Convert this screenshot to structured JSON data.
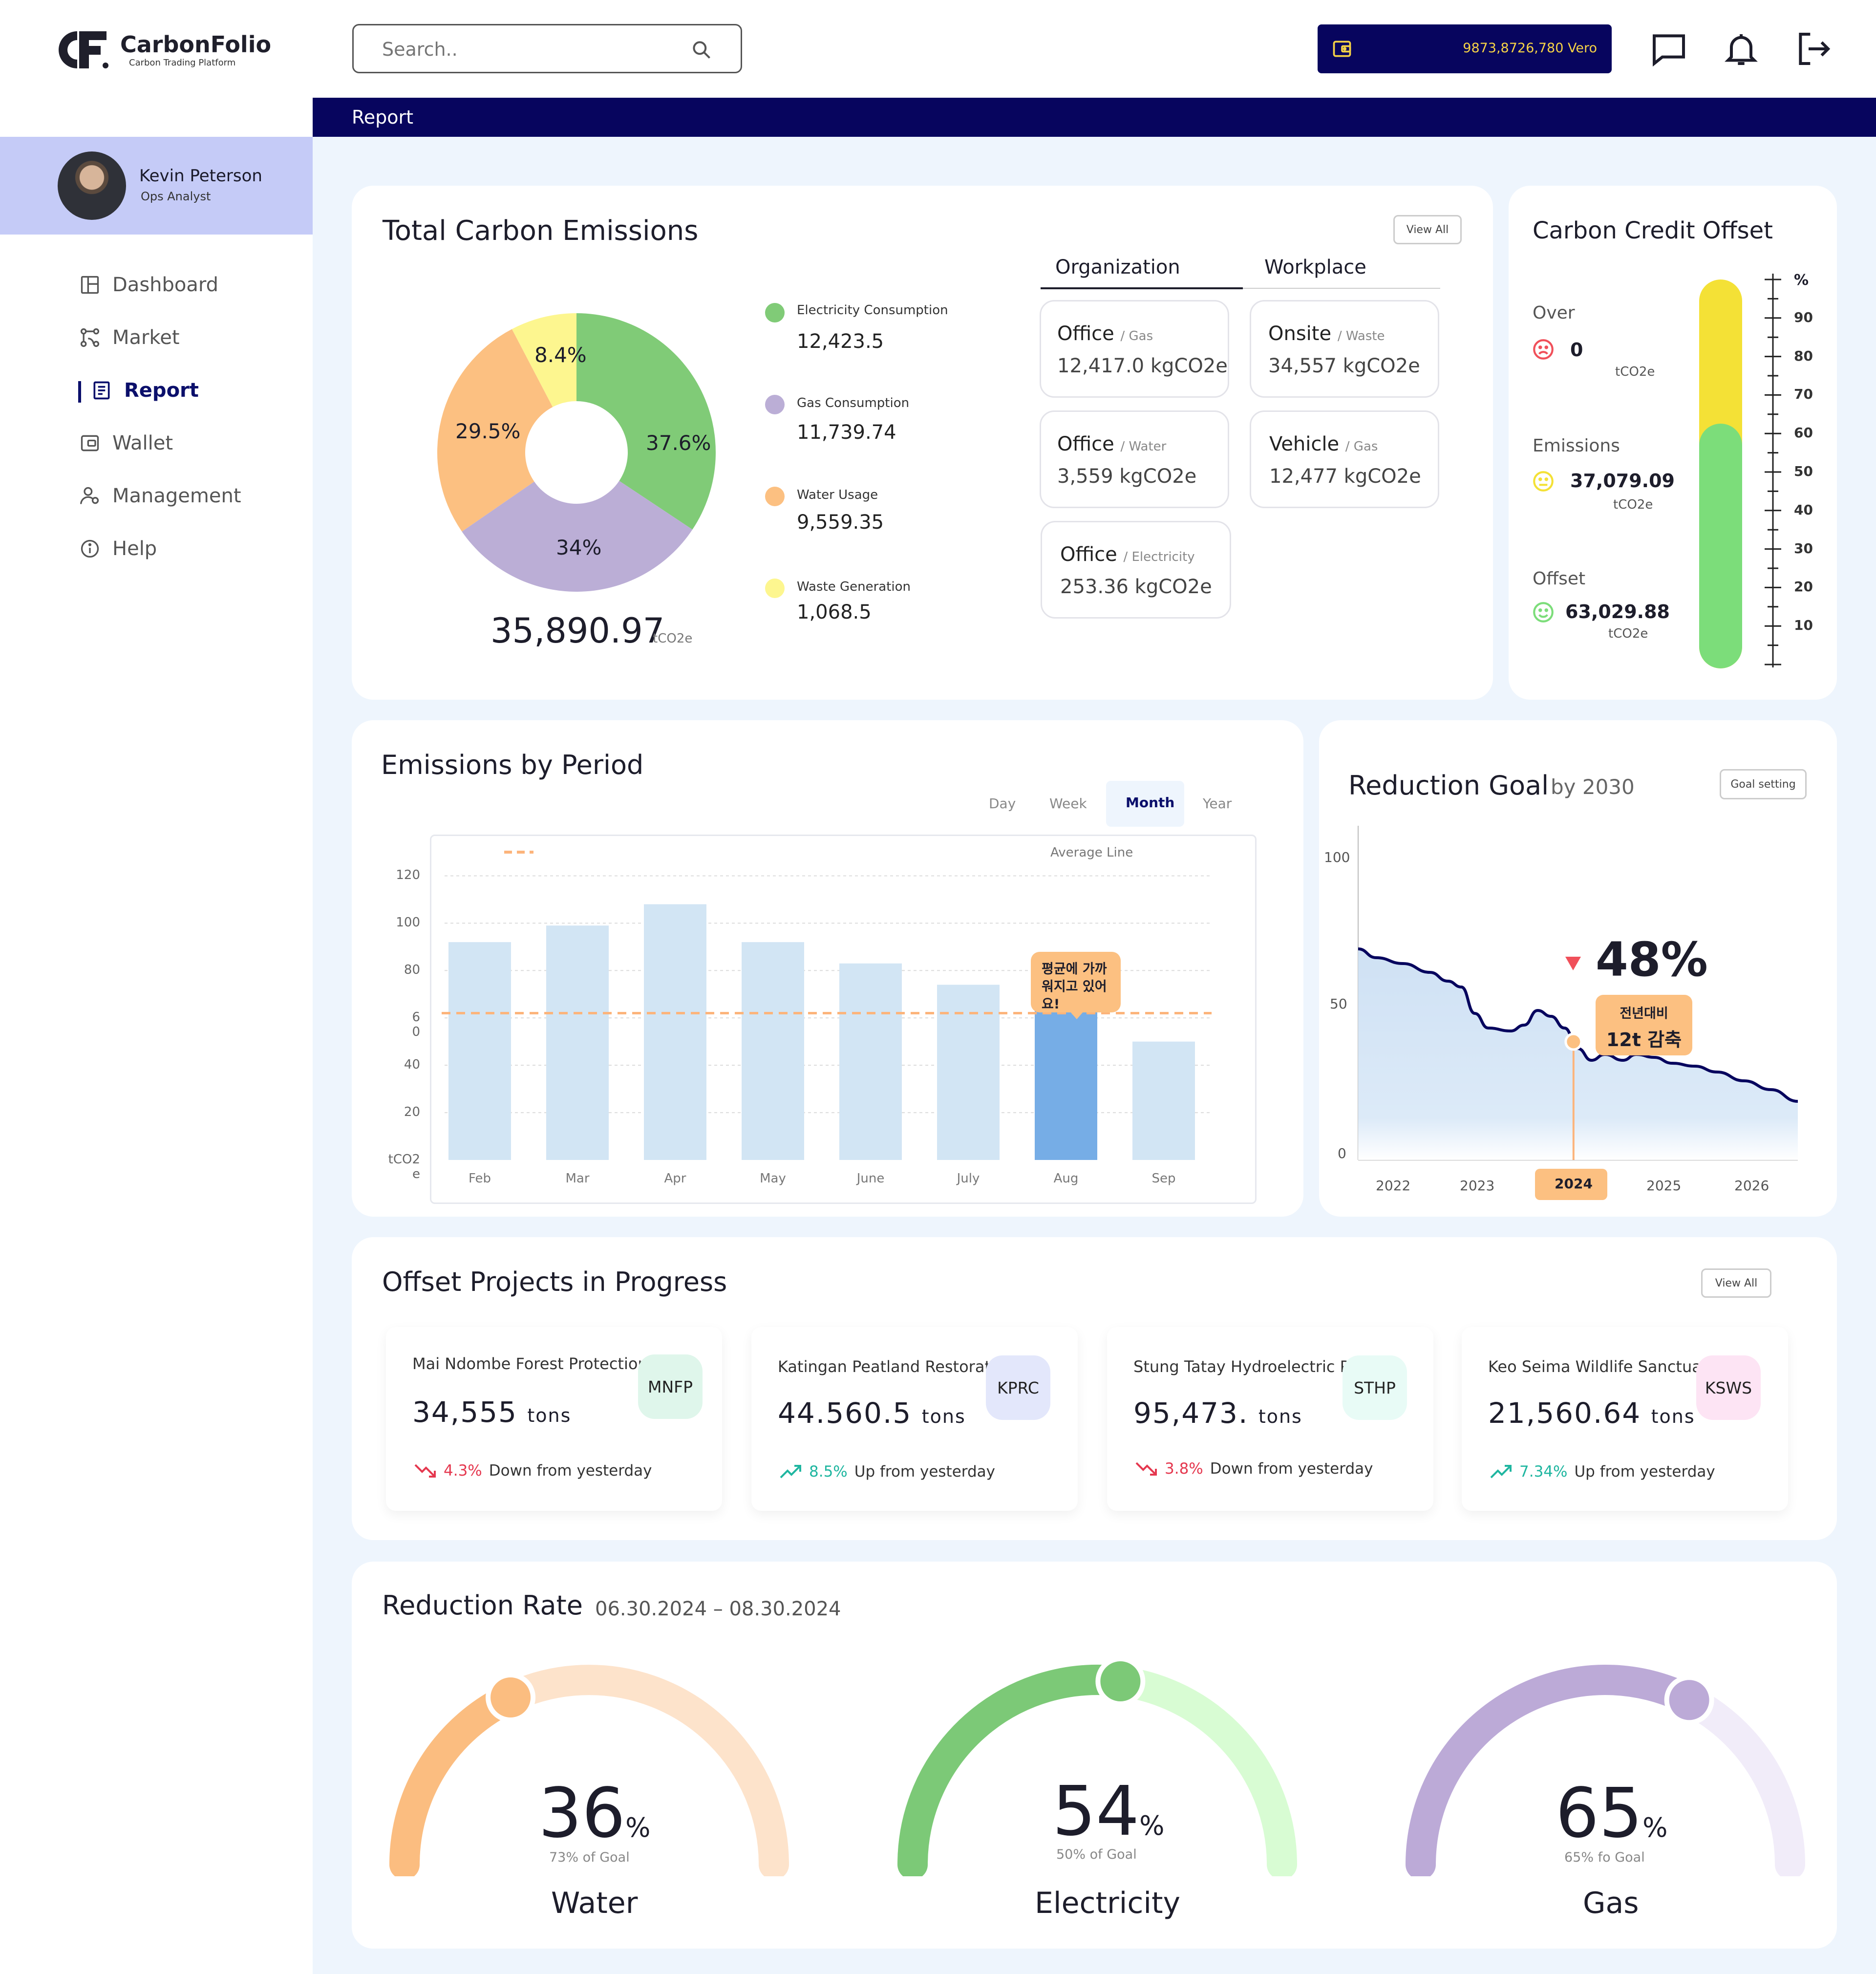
{
  "app": {
    "name": "CarbonFolio",
    "tagline": "Carbon Trading Platform"
  },
  "header": {
    "search_placeholder": "Search..",
    "wallet_balance": "9873,8726,780 Vero",
    "icons": [
      "message-icon",
      "bell-icon",
      "logout-icon"
    ]
  },
  "user": {
    "name": "Kevin Peterson",
    "role": "Ops Analyst"
  },
  "nav": {
    "items": [
      {
        "label": "Dashboard",
        "icon": "dashboard-icon"
      },
      {
        "label": "Market",
        "icon": "market-icon"
      },
      {
        "label": "Report",
        "icon": "report-icon",
        "active": true
      },
      {
        "label": "Wallet",
        "icon": "wallet-icon"
      },
      {
        "label": "Management",
        "icon": "management-icon"
      },
      {
        "label": "Help",
        "icon": "help-icon"
      }
    ]
  },
  "page": {
    "title": "Report"
  },
  "total_emissions": {
    "title": "Total Carbon Emissions",
    "view_all": "View All",
    "total": "35,890.97",
    "unit": "tCO2e",
    "legend": [
      {
        "label": "Electricity Consumption",
        "value": "12,423.5",
        "color": "#80cb77"
      },
      {
        "label": "Gas Consumption",
        "value": "11,739.74",
        "color": "#bbaed6"
      },
      {
        "label": "Water Usage",
        "value": "9,559.35",
        "color": "#fcc081"
      },
      {
        "label": "Waste Generation",
        "value": "1,068.5",
        "color": "#fdf68f"
      }
    ],
    "slice_labels": [
      "37.6%",
      "34%",
      "29.5%",
      "8.4%"
    ],
    "tabs": {
      "organization": "Organization",
      "workplace": "Workplace"
    },
    "tiles": [
      {
        "title": "Office",
        "sub": "/ Gas",
        "value": "12,417.0 kgCO2e"
      },
      {
        "title": "Onsite",
        "sub": "/ Waste",
        "value": "34,557 kgCO2e"
      },
      {
        "title": "Office",
        "sub": "/ Water",
        "value": "3,559 kgCO2e"
      },
      {
        "title": "Vehicle",
        "sub": "/ Gas",
        "value": "12,477 kgCO2e"
      },
      {
        "title": "Office",
        "sub": "/ Electricity",
        "value": "253.36 kgCO2e"
      }
    ]
  },
  "credit_offset": {
    "title": "Carbon Credit Offset",
    "over_label": "Over",
    "over_value": "0",
    "emissions_label": "Emissions",
    "emissions_value": "37,079.09",
    "offset_label": "Offset",
    "offset_value": "63,029.88",
    "unit": "tCO2e",
    "scale_unit": "%",
    "scale_ticks": [
      "90",
      "80",
      "70",
      "60",
      "50",
      "40",
      "30",
      "20",
      "10"
    ],
    "bar_green_level": 63,
    "bar_total_level": 100,
    "colors": {
      "over": "#f0505a",
      "emissions": "#f4e136",
      "offset": "#7cdd7a"
    }
  },
  "emissions_period": {
    "title": "Emissions by Period",
    "tabs": [
      "Day",
      "Week",
      "Month",
      "Year"
    ],
    "active_tab": "Month",
    "legend": "Average Line",
    "tooltip": "평균에 가까워지고 있어요!",
    "y_ticks": [
      "120",
      "100",
      "80",
      "6\n0",
      "40",
      "20",
      "tCO2\ne"
    ]
  },
  "reduction_goal": {
    "title": "Reduction Goal",
    "subtitle": "by 2030",
    "button": "Goal setting",
    "big": "48%",
    "tooltip_line1": "전년대비",
    "tooltip_line2": "12t 감축",
    "y_ticks": [
      "100",
      "50",
      "0"
    ],
    "x_ticks": [
      "2022",
      "2023",
      "2024",
      "2025",
      "2026"
    ],
    "active_x": "2024"
  },
  "offset_projects": {
    "title": "Offset Projects in Progress",
    "view_all": "View All",
    "unit": "tons",
    "items": [
      {
        "name": "Mai Ndombe Forest Protection",
        "value": "34,555",
        "badge": "MNFP",
        "badge_color": "#dff6eb",
        "change": "4.3%",
        "change_text": "Down from yesterday",
        "dir": "down"
      },
      {
        "name": "Katingan Peatland Restorat..",
        "value": "44.560.5",
        "badge": "KPRC",
        "badge_color": "#e3e7fb",
        "change": "8.5%",
        "change_text": "Up from yesterday",
        "dir": "up"
      },
      {
        "name": "Stung Tatay Hydroelectric P..",
        "value": "95,473.",
        "badge": "STHP",
        "badge_color": "#e8fbf6",
        "change": "3.8%",
        "change_text": "Down from yesterday",
        "dir": "down"
      },
      {
        "name": "Keo Seima Wildlife Sanctua..",
        "value": "21,560.64",
        "badge": "KSWS",
        "badge_color": "#fde4f4",
        "change": "7.34%",
        "change_text": "Up from yesterday",
        "dir": "up"
      }
    ]
  },
  "reduction_rate": {
    "title": "Reduction Rate",
    "date_range": "06.30.2024 – 08.30.2024",
    "gauges": [
      {
        "name": "Water",
        "value": "36",
        "unit": "%",
        "sub": "73% of Goal",
        "color": "#fbbd80",
        "track": "#fde3cb",
        "fraction": 0.36
      },
      {
        "name": "Electricity",
        "value": "54",
        "unit": "%",
        "sub": "50% of Goal",
        "color": "#7cc977",
        "track": "#d8fcd3",
        "fraction": 0.54
      },
      {
        "name": "Gas",
        "value": "65",
        "unit": "%",
        "sub": "65% fo Goal",
        "color": "#bcaad7",
        "track": "#f1ecf9",
        "fraction": 0.65
      }
    ]
  },
  "chart_data": [
    {
      "type": "pie",
      "labels": [
        "Electricity Consumption",
        "Gas Consumption",
        "Water Usage",
        "Waste Generation"
      ],
      "values": [
        37.6,
        34,
        29.5,
        8.4
      ],
      "colors": [
        "#80cb77",
        "#bbaed6",
        "#fcc081",
        "#fdf68f"
      ]
    },
    {
      "type": "bar",
      "title": "Emissions by Period",
      "categories": [
        "Feb",
        "Mar",
        "Apr",
        "May",
        "June",
        "July",
        "Aug",
        "Sep"
      ],
      "values": [
        92,
        99,
        108,
        92,
        83,
        74,
        67,
        50
      ],
      "highlight": "Aug",
      "average_line": 62,
      "ylim": [
        0,
        130
      ],
      "ylabel": "tCO2e"
    },
    {
      "type": "area",
      "title": "Reduction Goal",
      "x": [
        2021.6,
        2021.8,
        2022.1,
        2022.4,
        2022.6,
        2022.75,
        2022.9,
        2023.05,
        2023.3,
        2023.45,
        2023.6,
        2023.75,
        2023.9,
        2024.05,
        2024.2,
        2024.35,
        2024.55,
        2024.7,
        2024.9,
        2025.1,
        2025.35,
        2025.6,
        2025.9,
        2026.2,
        2026.5
      ],
      "y": [
        72,
        69,
        67,
        64,
        61,
        59,
        50,
        45,
        44,
        46,
        51,
        49,
        45,
        38,
        34,
        36,
        34,
        36,
        35,
        33,
        32,
        30,
        27,
        24,
        20
      ],
      "ylim": [
        0,
        100
      ],
      "marker_x": 2024.0
    }
  ]
}
